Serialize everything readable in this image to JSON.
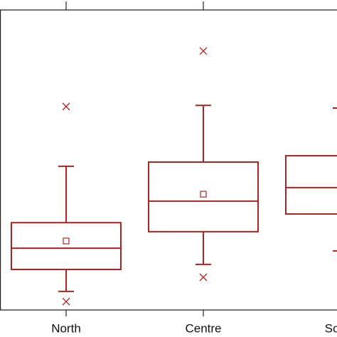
{
  "chart_data": {
    "type": "box",
    "categories": [
      "North",
      "Centre",
      "South"
    ],
    "color": "#a52524",
    "ylim": [
      0,
      100
    ],
    "whislo": [
      6.2,
      15.2,
      19.7
    ],
    "q1": [
      13.5,
      26.1,
      32.0
    ],
    "med": [
      20.6,
      36.3,
      40.8
    ],
    "q3": [
      29.1,
      49.3,
      51.4
    ],
    "whishi": [
      47.9,
      68.2,
      67.3
    ],
    "means": [
      23.0,
      38.6,
      null
    ],
    "outliers": [
      [
        67.8,
        2.8
      ],
      [
        86.3,
        10.9
      ],
      []
    ]
  }
}
